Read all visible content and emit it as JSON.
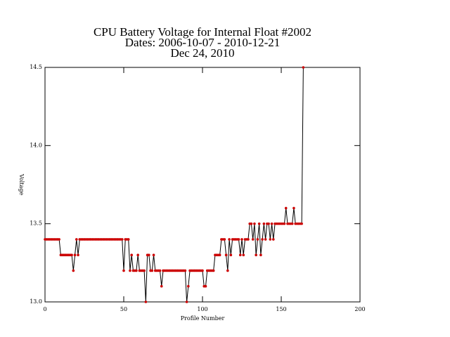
{
  "chart_data": {
    "type": "line",
    "title": [
      "CPU Battery Voltage for Internal Float #2002",
      "Dates:  2006-10-07 -  2010-12-21",
      "Dec 24, 2010"
    ],
    "x_label": "Profile Number",
    "y_label": "Voltage",
    "x": [
      0,
      1,
      2,
      3,
      4,
      5,
      6,
      7,
      8,
      9,
      10,
      11,
      12,
      13,
      14,
      15,
      16,
      17,
      18,
      19,
      20,
      21,
      22,
      23,
      24,
      25,
      26,
      27,
      28,
      29,
      30,
      31,
      32,
      33,
      34,
      35,
      36,
      37,
      38,
      39,
      40,
      41,
      42,
      43,
      44,
      45,
      46,
      47,
      48,
      49,
      50,
      51,
      52,
      53,
      54,
      55,
      56,
      57,
      58,
      59,
      60,
      61,
      62,
      63,
      64,
      65,
      66,
      67,
      68,
      69,
      70,
      71,
      72,
      73,
      74,
      75,
      76,
      77,
      78,
      79,
      80,
      81,
      82,
      83,
      84,
      85,
      86,
      87,
      88,
      89,
      90,
      91,
      92,
      93,
      94,
      95,
      96,
      97,
      98,
      99,
      100,
      101,
      102,
      103,
      104,
      105,
      106,
      107,
      108,
      109,
      110,
      111,
      112,
      113,
      114,
      115,
      116,
      117,
      118,
      119,
      120,
      121,
      122,
      123,
      124,
      125,
      126,
      127,
      128,
      129,
      130,
      131,
      132,
      133,
      134,
      135,
      136,
      137,
      138,
      139,
      140,
      141,
      142,
      143,
      144,
      145,
      146,
      147,
      148,
      149,
      150,
      151,
      152,
      153,
      154,
      155,
      156,
      157,
      158,
      159,
      160,
      161,
      162,
      163,
      164
    ],
    "series": [
      {
        "name": "Voltage",
        "color": "#000000",
        "marker_color": "#cc0000",
        "values": [
          13.4,
          13.4,
          13.4,
          13.4,
          13.4,
          13.4,
          13.4,
          13.4,
          13.4,
          13.4,
          13.3,
          13.3,
          13.3,
          13.3,
          13.3,
          13.3,
          13.3,
          13.3,
          13.2,
          13.3,
          13.4,
          13.3,
          13.4,
          13.4,
          13.4,
          13.4,
          13.4,
          13.4,
          13.4,
          13.4,
          13.4,
          13.4,
          13.4,
          13.4,
          13.4,
          13.4,
          13.4,
          13.4,
          13.4,
          13.4,
          13.4,
          13.4,
          13.4,
          13.4,
          13.4,
          13.4,
          13.4,
          13.4,
          13.4,
          13.4,
          13.2,
          13.4,
          13.4,
          13.4,
          13.2,
          13.3,
          13.2,
          13.2,
          13.2,
          13.3,
          13.2,
          13.2,
          13.2,
          13.2,
          13.0,
          13.3,
          13.3,
          13.2,
          13.2,
          13.3,
          13.2,
          13.2,
          13.2,
          13.2,
          13.1,
          13.2,
          13.2,
          13.2,
          13.2,
          13.2,
          13.2,
          13.2,
          13.2,
          13.2,
          13.2,
          13.2,
          13.2,
          13.2,
          13.2,
          13.2,
          13.0,
          13.1,
          13.2,
          13.2,
          13.2,
          13.2,
          13.2,
          13.2,
          13.2,
          13.2,
          13.2,
          13.1,
          13.1,
          13.2,
          13.2,
          13.2,
          13.2,
          13.2,
          13.3,
          13.3,
          13.3,
          13.3,
          13.4,
          13.4,
          13.4,
          13.3,
          13.2,
          13.4,
          13.3,
          13.4,
          13.4,
          13.4,
          13.4,
          13.4,
          13.3,
          13.4,
          13.3,
          13.4,
          13.4,
          13.4,
          13.5,
          13.5,
          13.4,
          13.5,
          13.3,
          13.4,
          13.5,
          13.3,
          13.4,
          13.5,
          13.4,
          13.5,
          13.5,
          13.4,
          13.5,
          13.4,
          13.5,
          13.5,
          13.5,
          13.5,
          13.5,
          13.5,
          13.5,
          13.6,
          13.5,
          13.5,
          13.5,
          13.5,
          13.6,
          13.5,
          13.5,
          13.5,
          13.5,
          13.5,
          14.5
        ]
      }
    ],
    "xlim": [
      0,
      200
    ],
    "xticks": [
      0,
      50,
      100,
      150,
      200
    ],
    "ylim": [
      13.0,
      14.5
    ],
    "yticks": [
      {
        "value": 13.0,
        "label": "13.0"
      },
      {
        "value": 13.5,
        "label": "13.5"
      },
      {
        "value": 14.0,
        "label": "14.0"
      },
      {
        "value": 14.5,
        "label": "14.5"
      }
    ],
    "grid": false
  }
}
